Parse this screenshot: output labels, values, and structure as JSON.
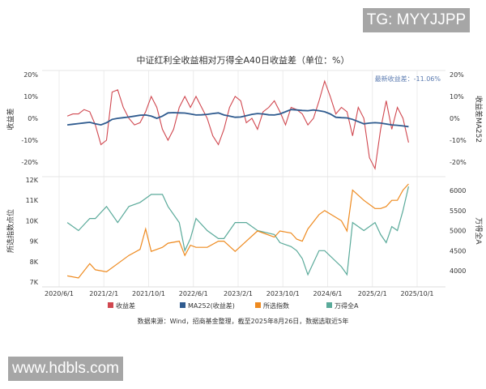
{
  "watermarks": {
    "top_right": "TG: MYYJJPP",
    "bottom_left": "www.hdbls.com"
  },
  "source_note": "数据来源：Wind，招商基金整理，截至2025年8月26日，数据选取近5年",
  "colors": {
    "spread": "#d0474f",
    "ma": "#2f5b8f",
    "index": "#ee8a1f",
    "wind": "#5aaa9a"
  },
  "chart_data": [
    {
      "type": "line",
      "title": "中证红利全收益相对万得全A40日收益差（单位：%）",
      "ylabel": "收益差",
      "ylabel_right": "收益差MA252",
      "annotation": "最新收益差：-11.06%",
      "ylim": [
        -25,
        20
      ],
      "yticks": [
        "20%",
        "10%",
        "0%",
        "-10%",
        "-20%"
      ],
      "yticks_right": [
        "20%",
        "10%",
        "0%",
        "-10%",
        "-20%"
      ],
      "grid": "vertical",
      "x": [
        "2020-07",
        "2020-08",
        "2020-09",
        "2020-10",
        "2020-11",
        "2020-12",
        "2021-01",
        "2021-02",
        "2021-03",
        "2021-04",
        "2021-05",
        "2021-06",
        "2021-07",
        "2021-08",
        "2021-09",
        "2021-10",
        "2021-11",
        "2021-12",
        "2022-01",
        "2022-02",
        "2022-03",
        "2022-04",
        "2022-05",
        "2022-06",
        "2022-07",
        "2022-08",
        "2022-09",
        "2022-10",
        "2022-11",
        "2022-12",
        "2023-01",
        "2023-02",
        "2023-03",
        "2023-04",
        "2023-05",
        "2023-06",
        "2023-07",
        "2023-08",
        "2023-09",
        "2023-10",
        "2023-11",
        "2023-12",
        "2024-01",
        "2024-02",
        "2024-03",
        "2024-04",
        "2024-05",
        "2024-06",
        "2024-07",
        "2024-08",
        "2024-09",
        "2024-10",
        "2024-11",
        "2024-12",
        "2025-01",
        "2025-02",
        "2025-03",
        "2025-04",
        "2025-05",
        "2025-06",
        "2025-07",
        "2025-08"
      ],
      "series": [
        {
          "name": "收益差",
          "values": [
            1,
            2,
            2,
            4,
            3,
            -3,
            -12,
            -10,
            12,
            13,
            5,
            0,
            -3,
            -2,
            3,
            10,
            5,
            -5,
            -10,
            -5,
            5,
            10,
            5,
            10,
            5,
            0,
            -8,
            -12,
            -5,
            5,
            10,
            8,
            -2,
            0,
            -5,
            3,
            5,
            8,
            3,
            -3,
            5,
            4,
            2,
            -3,
            0,
            8,
            17,
            10,
            2,
            5,
            3,
            -8,
            5,
            0,
            -18,
            -23,
            -5,
            8,
            -5,
            5,
            0,
            -11.06
          ]
        },
        {
          "name": "MA252(收益差)",
          "values": [
            -3,
            -2.7,
            -2.4,
            -2.1,
            -1.8,
            -2.5,
            -3,
            -2,
            -0.5,
            0,
            0.3,
            0.6,
            1,
            1.4,
            1.5,
            1,
            0,
            1,
            2.5,
            2.6,
            2.5,
            2.4,
            2,
            1.5,
            1.6,
            1.8,
            2.2,
            2.5,
            1.5,
            1,
            0.5,
            0.6,
            1.2,
            1.8,
            2.2,
            2,
            1.6,
            1.5,
            2,
            3,
            4,
            3.8,
            3.6,
            3.5,
            3.8,
            3.5,
            3,
            2,
            0.5,
            0.3,
            0.2,
            -0.5,
            -1.5,
            -2.5,
            -2.2,
            -2,
            -2.2,
            -2.6,
            -3,
            -3.2,
            -3.5,
            -3.8
          ]
        }
      ]
    },
    {
      "type": "line",
      "ylabel": "所选指数点位",
      "ylabel_right": "万得全A",
      "ylim": [
        7000,
        12000
      ],
      "ylim_right": [
        3700,
        6150
      ],
      "yticks": [
        "12K",
        "11K",
        "10K",
        "9K",
        "8K",
        "7K"
      ],
      "yticks_right": [
        "6000",
        "5500",
        "5000",
        "4500",
        "4000"
      ],
      "xticks": [
        "2020/6/1",
        "2021/2/1",
        "2021/10/1",
        "2022/6/1",
        "2023/2/1",
        "2023/10/1",
        "2024/6/1",
        "2025/2/1",
        "2025/10/1"
      ],
      "grid": "vertical",
      "x": [
        "2020-07",
        "2020-09",
        "2020-11",
        "2020-12",
        "2021-02",
        "2021-04",
        "2021-06",
        "2021-08",
        "2021-09",
        "2021-10",
        "2021-12",
        "2022-01",
        "2022-03",
        "2022-04",
        "2022-05",
        "2022-06",
        "2022-08",
        "2022-10",
        "2022-11",
        "2023-01",
        "2023-03",
        "2023-05",
        "2023-08",
        "2023-09",
        "2023-11",
        "2023-12",
        "2024-01",
        "2024-02",
        "2024-04",
        "2024-05",
        "2024-08",
        "2024-09",
        "2024-10",
        "2024-12",
        "2025-02",
        "2025-03",
        "2025-04",
        "2025-05",
        "2025-06",
        "2025-07",
        "2025-08"
      ],
      "series": [
        {
          "name": "所选指数",
          "axis": "left",
          "values": [
            7300,
            7200,
            7900,
            7600,
            7500,
            7900,
            8300,
            8600,
            9600,
            8500,
            8700,
            8900,
            9000,
            8300,
            8800,
            8700,
            8700,
            9000,
            9000,
            8500,
            9000,
            9500,
            9200,
            9500,
            9400,
            9100,
            9000,
            9600,
            10300,
            10500,
            10000,
            9500,
            11500,
            11000,
            10600,
            10600,
            10700,
            11000,
            11000,
            11500,
            11800
          ]
        },
        {
          "name": "万得全A",
          "axis": "left_right",
          "values": [
            5200,
            5000,
            5300,
            5300,
            5600,
            5200,
            5600,
            5700,
            5800,
            5900,
            5900,
            5600,
            5200,
            4500,
            4800,
            5300,
            5000,
            4800,
            4800,
            5200,
            5200,
            5000,
            4900,
            4700,
            4600,
            4500,
            4300,
            3900,
            4500,
            4500,
            4100,
            3900,
            5200,
            5000,
            5200,
            4900,
            4700,
            5100,
            5000,
            5500,
            6100
          ]
        }
      ]
    }
  ],
  "legend": [
    "收益差",
    "MA252(收益差)",
    "所选指数",
    "万得全A"
  ]
}
